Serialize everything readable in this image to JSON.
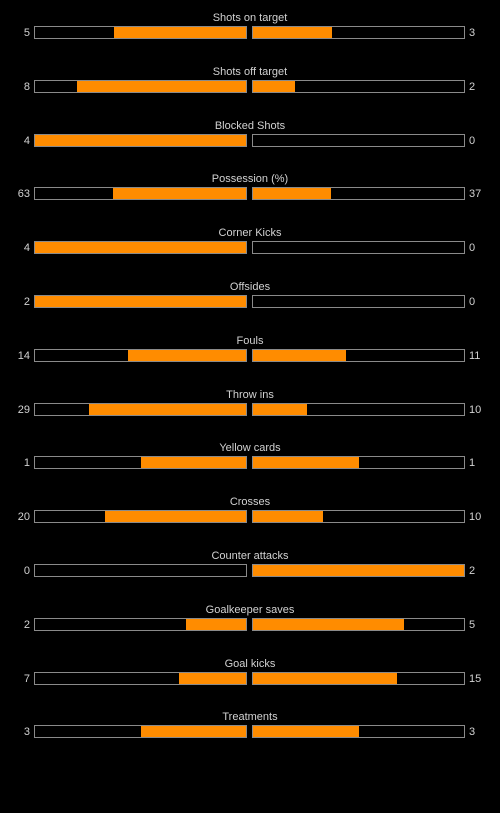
{
  "colors": {
    "background": "#000000",
    "bar_fill": "#ff8c00",
    "bar_border": "#8a8a8a",
    "text": "#d2d2d2"
  },
  "stats": [
    {
      "label": "Shots on target",
      "home": "5",
      "away": "3",
      "home_fraction": 0.625,
      "away_fraction": 0.375
    },
    {
      "label": "Shots off target",
      "home": "8",
      "away": "2",
      "home_fraction": 0.8,
      "away_fraction": 0.2
    },
    {
      "label": "Blocked Shots",
      "home": "4",
      "away": "0",
      "home_fraction": 1.0,
      "away_fraction": 0.0
    },
    {
      "label": "Possession (%)",
      "home": "63",
      "away": "37",
      "home_fraction": 0.63,
      "away_fraction": 0.37
    },
    {
      "label": "Corner Kicks",
      "home": "4",
      "away": "0",
      "home_fraction": 1.0,
      "away_fraction": 0.0
    },
    {
      "label": "Offsides",
      "home": "2",
      "away": "0",
      "home_fraction": 1.0,
      "away_fraction": 0.0
    },
    {
      "label": "Fouls",
      "home": "14",
      "away": "11",
      "home_fraction": 0.56,
      "away_fraction": 0.44
    },
    {
      "label": "Throw ins",
      "home": "29",
      "away": "10",
      "home_fraction": 0.744,
      "away_fraction": 0.256
    },
    {
      "label": "Yellow cards",
      "home": "1",
      "away": "1",
      "home_fraction": 0.5,
      "away_fraction": 0.5
    },
    {
      "label": "Crosses",
      "home": "20",
      "away": "10",
      "home_fraction": 0.667,
      "away_fraction": 0.333
    },
    {
      "label": "Counter attacks",
      "home": "0",
      "away": "2",
      "home_fraction": 0.0,
      "away_fraction": 1.0
    },
    {
      "label": "Goalkeeper saves",
      "home": "2",
      "away": "5",
      "home_fraction": 0.286,
      "away_fraction": 0.714
    },
    {
      "label": "Goal kicks",
      "home": "7",
      "away": "15",
      "home_fraction": 0.318,
      "away_fraction": 0.682
    },
    {
      "label": "Treatments",
      "home": "3",
      "away": "3",
      "home_fraction": 0.5,
      "away_fraction": 0.5
    }
  ]
}
